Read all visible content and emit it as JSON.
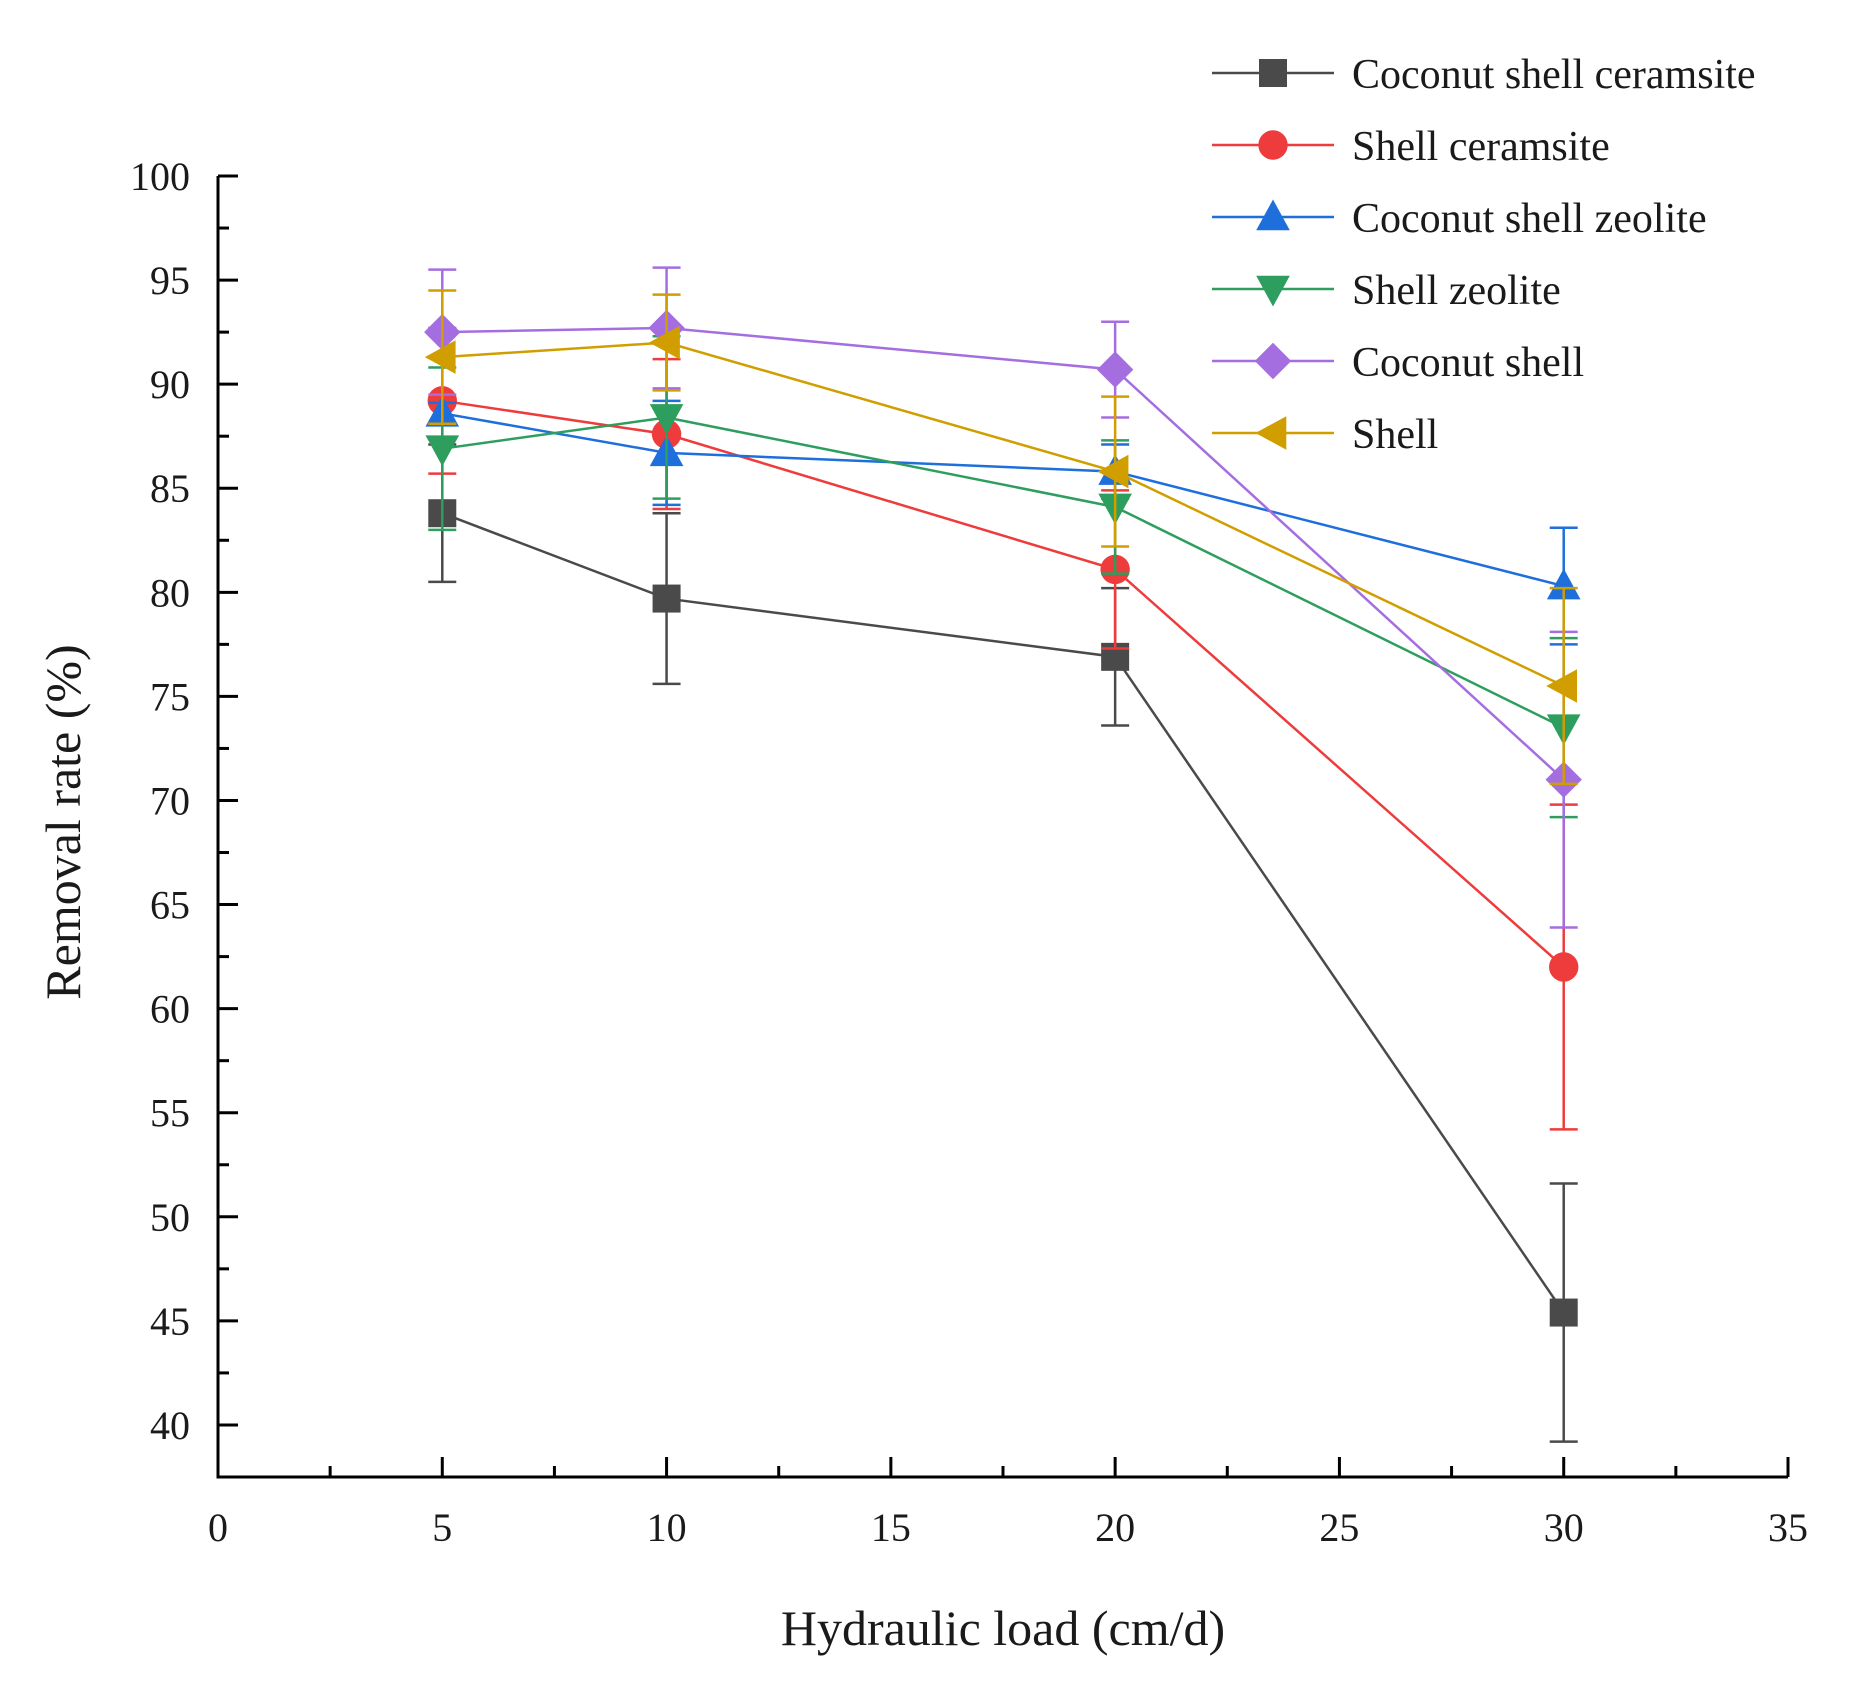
{
  "chart_data": {
    "type": "line",
    "title": "",
    "xlabel": "Hydraulic load (cm/d)",
    "ylabel": "Removal rate (%)",
    "xlim": [
      0,
      35
    ],
    "ylim": [
      37.5,
      100
    ],
    "xticks": [
      0,
      5,
      10,
      15,
      20,
      25,
      30,
      35
    ],
    "yticks": [
      40,
      45,
      50,
      55,
      60,
      65,
      70,
      75,
      80,
      85,
      90,
      95,
      100
    ],
    "x": [
      5,
      10,
      20,
      30
    ],
    "legend_position": "top-right",
    "series": [
      {
        "name": "Coconut shell ceramsite",
        "color": "#4a4a4a",
        "marker": "square",
        "values": [
          83.8,
          79.7,
          76.9,
          45.4
        ],
        "errors": [
          3.3,
          4.1,
          3.3,
          6.2
        ]
      },
      {
        "name": "Shell ceramsite",
        "color": "#ee3b3b",
        "marker": "circle",
        "values": [
          89.2,
          87.6,
          81.1,
          62.0
        ],
        "errors": [
          3.5,
          3.6,
          3.8,
          7.8
        ]
      },
      {
        "name": "Coconut shell zeolite",
        "color": "#1e6fdc",
        "marker": "triangle-up",
        "values": [
          88.6,
          86.7,
          85.8,
          80.3
        ],
        "errors": [
          0.5,
          2.5,
          1.3,
          2.8
        ]
      },
      {
        "name": "Shell zeolite",
        "color": "#2e9e5e",
        "marker": "triangle-down",
        "values": [
          86.9,
          88.4,
          84.1,
          73.5
        ],
        "errors": [
          3.9,
          3.9,
          3.2,
          4.3
        ]
      },
      {
        "name": "Coconut shell",
        "color": "#a56ee0",
        "marker": "diamond",
        "values": [
          92.5,
          92.7,
          90.7,
          71.0
        ],
        "errors": [
          3.0,
          2.9,
          2.3,
          7.1
        ]
      },
      {
        "name": "Shell",
        "color": "#d19e00",
        "marker": "triangle-left",
        "values": [
          91.3,
          92.0,
          85.8,
          75.5
        ],
        "errors": [
          3.2,
          2.3,
          3.6,
          4.7
        ]
      }
    ]
  }
}
